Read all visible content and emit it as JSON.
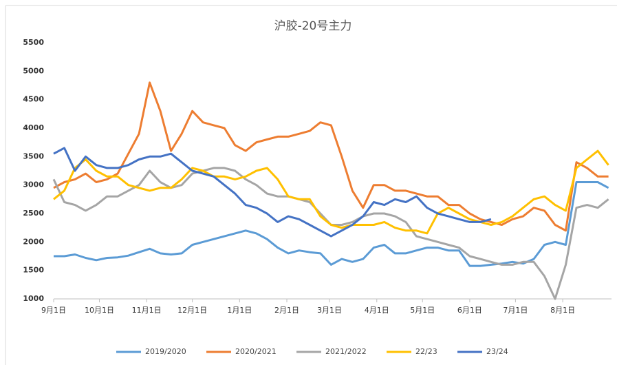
{
  "chart_data": {
    "type": "line",
    "title": "沪胶-20号主力",
    "x": [
      0,
      7,
      14,
      21,
      28,
      35,
      42,
      49,
      56,
      63,
      70,
      77,
      84,
      91,
      98,
      105,
      112,
      119,
      126,
      133,
      140,
      147,
      154,
      161,
      168,
      175,
      182,
      189,
      196,
      203,
      210,
      217,
      224,
      231,
      238,
      245,
      252,
      259,
      266,
      273,
      280,
      287,
      294,
      301,
      308,
      315,
      322,
      329,
      336,
      343,
      350,
      357,
      364
    ],
    "xlim": [
      0,
      366
    ],
    "xticks": [
      {
        "value": 0,
        "label": "9月1日"
      },
      {
        "value": 30,
        "label": "10月1日"
      },
      {
        "value": 61,
        "label": "11月1日"
      },
      {
        "value": 91,
        "label": "12月1日"
      },
      {
        "value": 122,
        "label": "1月1日"
      },
      {
        "value": 153,
        "label": "2月1日"
      },
      {
        "value": 181,
        "label": "3月1日"
      },
      {
        "value": 212,
        "label": "4月1日"
      },
      {
        "value": 242,
        "label": "5月1日"
      },
      {
        "value": 273,
        "label": "6月1日"
      },
      {
        "value": 303,
        "label": "7月1日"
      },
      {
        "value": 334,
        "label": "8月1日"
      }
    ],
    "ylim": [
      1000,
      5500
    ],
    "yticks": [
      1000,
      1500,
      2000,
      2500,
      3000,
      3500,
      4000,
      4500,
      5000,
      5500
    ],
    "grid": false,
    "legend": "bottom",
    "series": [
      {
        "name": "2019/2020",
        "color": "#5b9bd5",
        "values": [
          1750,
          1750,
          1780,
          1720,
          1680,
          1720,
          1730,
          1760,
          1820,
          1880,
          1800,
          1780,
          1800,
          1950,
          2000,
          2050,
          2100,
          2150,
          2200,
          2150,
          2050,
          1900,
          1800,
          1850,
          1820,
          1800,
          1600,
          1700,
          1650,
          1700,
          1900,
          1950,
          1800,
          1800,
          1850,
          1900,
          1900,
          1850,
          1850,
          1580,
          1580,
          1600,
          1620,
          1650,
          1620,
          1700,
          1950,
          2000,
          1950,
          3050,
          3050,
          3050,
          2950
        ]
      },
      {
        "name": "2020/2021",
        "color": "#ed7d31",
        "values": [
          2950,
          3050,
          3100,
          3200,
          3050,
          3100,
          3200,
          3550,
          3900,
          4800,
          4300,
          3600,
          3900,
          4300,
          4100,
          4050,
          4000,
          3700,
          3600,
          3750,
          3800,
          3850,
          3850,
          3900,
          3950,
          4100,
          4050,
          3500,
          2900,
          2600,
          3000,
          3000,
          2900,
          2900,
          2850,
          2800,
          2800,
          2650,
          2650,
          2500,
          2400,
          2350,
          2300,
          2400,
          2450,
          2600,
          2550,
          2300,
          2200,
          3400,
          3300,
          3150,
          3150
        ]
      },
      {
        "name": "2021/2022",
        "color": "#a5a5a5",
        "values": [
          3100,
          2700,
          2650,
          2550,
          2650,
          2800,
          2800,
          2900,
          3000,
          3250,
          3050,
          2950,
          3000,
          3200,
          3250,
          3300,
          3300,
          3250,
          3100,
          3000,
          2850,
          2800,
          2800,
          2750,
          2700,
          2500,
          2300,
          2300,
          2350,
          2450,
          2500,
          2500,
          2450,
          2350,
          2100,
          2050,
          2000,
          1950,
          1900,
          1750,
          1700,
          1650,
          1600,
          1600,
          1650,
          1650,
          1400,
          1000,
          1600,
          2600,
          2650,
          2600,
          2750
        ]
      },
      {
        "name": "22/23",
        "color": "#ffc000",
        "values": [
          2750,
          2900,
          3300,
          3450,
          3250,
          3150,
          3150,
          3000,
          2950,
          2900,
          2950,
          2950,
          3100,
          3300,
          3250,
          3150,
          3150,
          3100,
          3150,
          3250,
          3300,
          3100,
          2800,
          2750,
          2750,
          2450,
          2300,
          2250,
          2300,
          2300,
          2300,
          2350,
          2250,
          2200,
          2200,
          2150,
          2500,
          2600,
          2500,
          2400,
          2350,
          2300,
          2350,
          2450,
          2600,
          2750,
          2800,
          2650,
          2550,
          3300,
          3450,
          3600,
          3350
        ]
      },
      {
        "name": "23/24",
        "color": "#4472c4",
        "values": [
          3550,
          3650,
          3250,
          3500,
          3350,
          3300,
          3300,
          3350,
          3450,
          3500,
          3500,
          3550,
          3400,
          3250,
          3200,
          3150,
          3000,
          2850,
          2650,
          2600,
          2500,
          2350,
          2450,
          2400,
          2300,
          2200,
          2100,
          2200,
          2300,
          2450,
          2700,
          2650,
          2750,
          2700,
          2800,
          2600,
          2500,
          2450,
          2400,
          2350,
          2350,
          2400,
          null,
          null,
          null,
          null,
          null,
          null,
          null,
          null,
          null,
          null,
          null
        ]
      }
    ]
  }
}
